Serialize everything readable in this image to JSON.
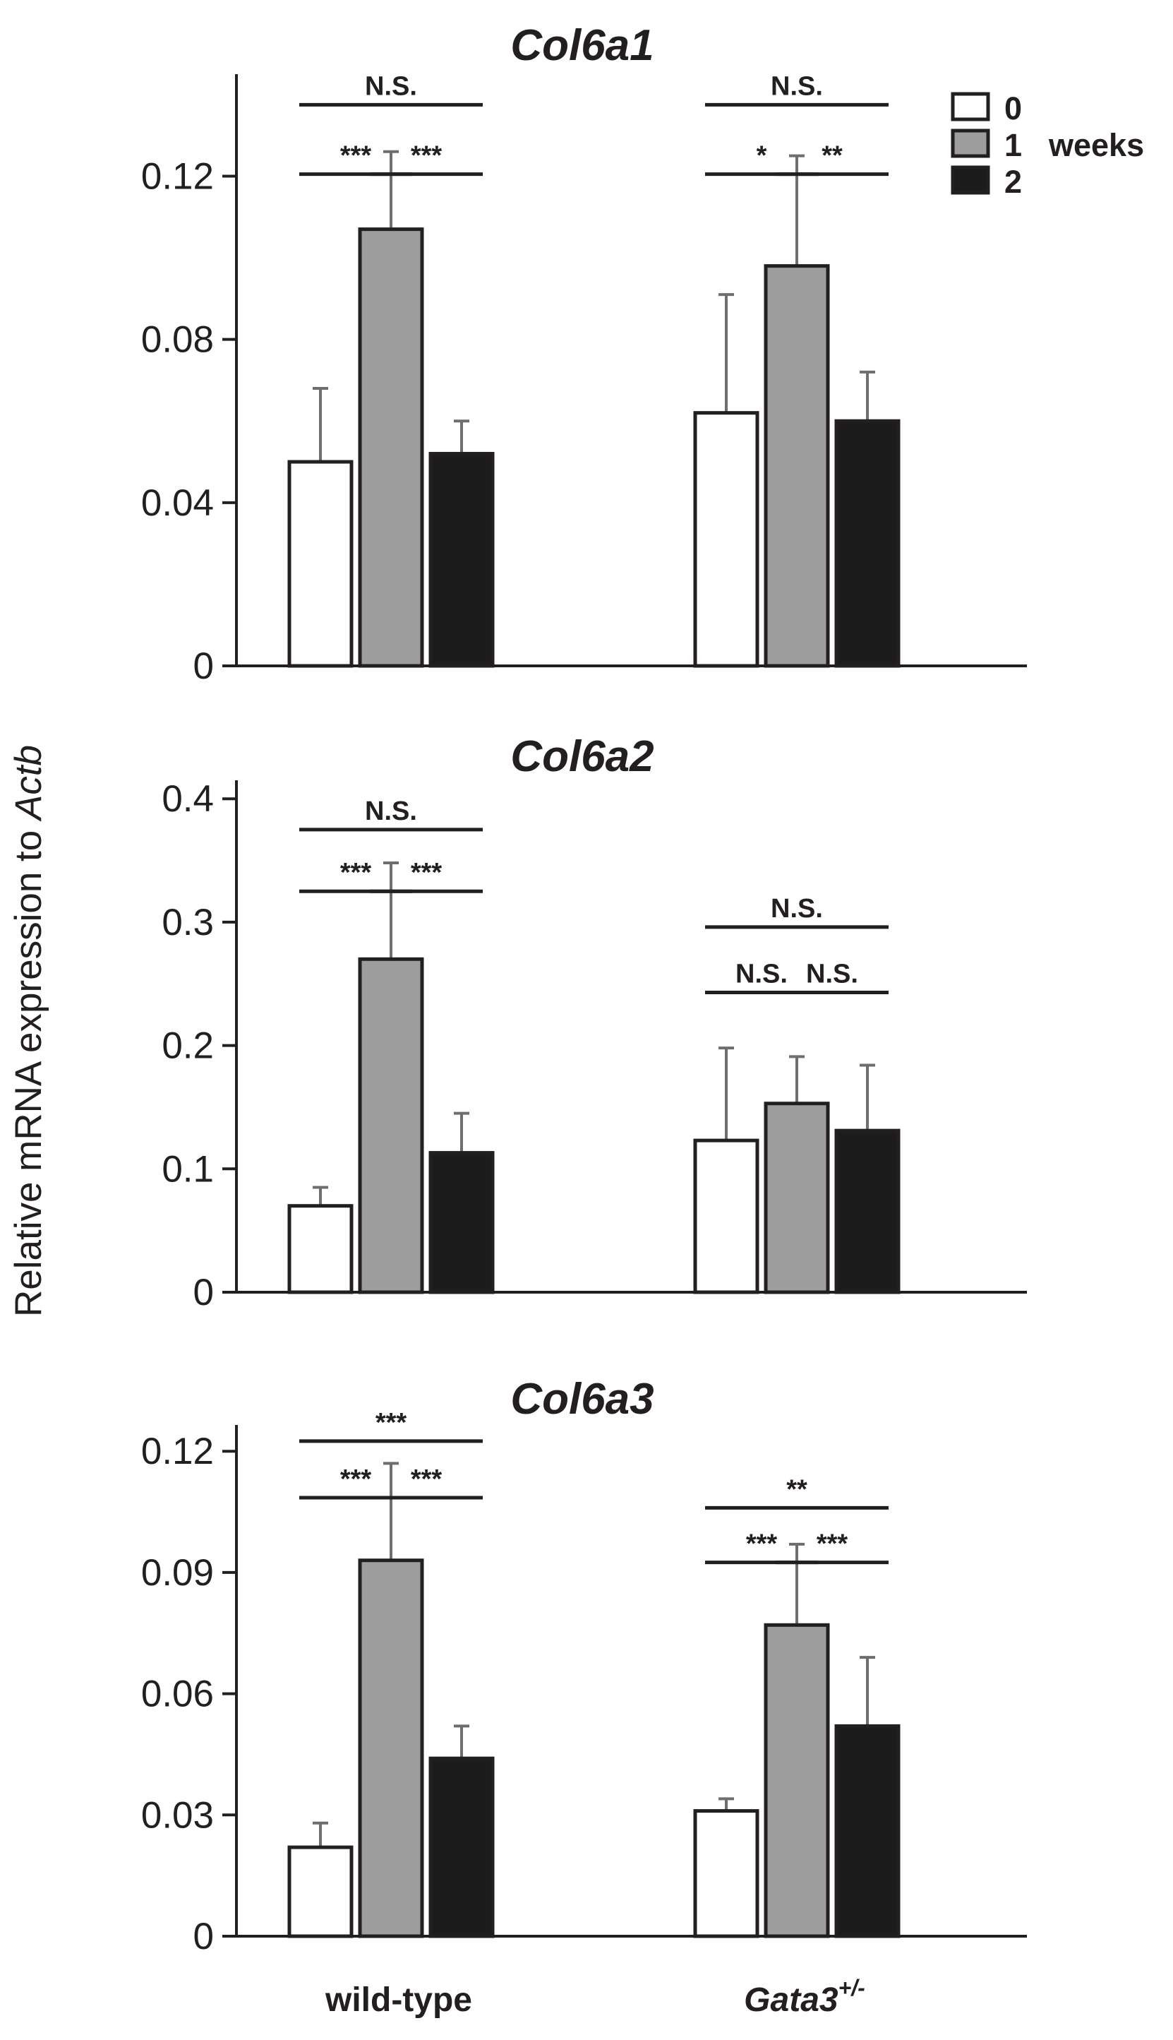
{
  "figure": {
    "ylabel_main": "Relative mRNA expression to ",
    "ylabel_italic": "Actb"
  },
  "legend": {
    "title_suffix": "weeks",
    "entries": [
      {
        "label": "0",
        "color": "#ffffff"
      },
      {
        "label": "1",
        "color": "#9d9d9d"
      },
      {
        "label": "2",
        "color": "#1c1c1c"
      }
    ]
  },
  "categories": [
    {
      "label": "wild-type",
      "italic": false,
      "sup": ""
    },
    {
      "label": "Gata3",
      "italic": true,
      "sup": "+/-"
    }
  ],
  "chart_data": [
    {
      "type": "bar",
      "title": "Col6a1",
      "categories": [
        "wild-type",
        "Gata3+/-"
      ],
      "ylim": [
        0,
        0.145
      ],
      "yticks": [
        0,
        0.04,
        0.08,
        0.12
      ],
      "yticklabels": [
        "0",
        "0.04",
        "0.08",
        "0.12"
      ],
      "series": [
        {
          "name": "0",
          "color": "#ffffff",
          "values": [
            0.05,
            0.062
          ],
          "errors": [
            0.018,
            0.029
          ]
        },
        {
          "name": "1",
          "color": "#9d9d9d",
          "values": [
            0.107,
            0.098
          ],
          "errors": [
            0.019,
            0.027
          ]
        },
        {
          "name": "2",
          "color": "#1c1c1c",
          "values": [
            0.052,
            0.06
          ],
          "errors": [
            0.008,
            0.012
          ]
        }
      ],
      "significance": [
        {
          "category": 0,
          "from": 0,
          "to": 2,
          "label": "N.S.",
          "y": 0.1375
        },
        {
          "category": 0,
          "from": 0,
          "to": 1,
          "label": "***",
          "y": 0.1205
        },
        {
          "category": 0,
          "from": 1,
          "to": 2,
          "label": "***",
          "y": 0.1205
        },
        {
          "category": 1,
          "from": 0,
          "to": 2,
          "label": "N.S.",
          "y": 0.1375
        },
        {
          "category": 1,
          "from": 0,
          "to": 1,
          "label": "*",
          "y": 0.1205
        },
        {
          "category": 1,
          "from": 1,
          "to": 2,
          "label": "**",
          "y": 0.1205
        }
      ]
    },
    {
      "type": "bar",
      "title": "Col6a2",
      "categories": [
        "wild-type",
        "Gata3+/-"
      ],
      "ylim": [
        0,
        0.415
      ],
      "yticks": [
        0,
        0.1,
        0.2,
        0.3,
        0.4
      ],
      "yticklabels": [
        "0",
        "0.1",
        "0.2",
        "0.3",
        "0.4"
      ],
      "series": [
        {
          "name": "0",
          "color": "#ffffff",
          "values": [
            0.07,
            0.123
          ],
          "errors": [
            0.015,
            0.075
          ]
        },
        {
          "name": "1",
          "color": "#9d9d9d",
          "values": [
            0.27,
            0.153
          ],
          "errors": [
            0.078,
            0.038
          ]
        },
        {
          "name": "2",
          "color": "#1c1c1c",
          "values": [
            0.113,
            0.131
          ],
          "errors": [
            0.032,
            0.053
          ]
        }
      ],
      "significance": [
        {
          "category": 0,
          "from": 0,
          "to": 2,
          "label": "N.S.",
          "y": 0.375
        },
        {
          "category": 0,
          "from": 0,
          "to": 1,
          "label": "***",
          "y": 0.325
        },
        {
          "category": 0,
          "from": 1,
          "to": 2,
          "label": "***",
          "y": 0.325
        },
        {
          "category": 1,
          "from": 0,
          "to": 2,
          "label": "N.S.",
          "y": 0.296
        },
        {
          "category": 1,
          "from": 0,
          "to": 1,
          "label": "N.S.",
          "y": 0.243
        },
        {
          "category": 1,
          "from": 1,
          "to": 2,
          "label": "N.S.",
          "y": 0.243
        }
      ]
    },
    {
      "type": "bar",
      "title": "Col6a3",
      "categories": [
        "wild-type",
        "Gata3+/-"
      ],
      "ylim": [
        0,
        0.1265
      ],
      "yticks": [
        0,
        0.03,
        0.06,
        0.09,
        0.12
      ],
      "yticklabels": [
        "0",
        "0.03",
        "0.06",
        "0.09",
        "0.12"
      ],
      "series": [
        {
          "name": "0",
          "color": "#ffffff",
          "values": [
            0.022,
            0.031
          ],
          "errors": [
            0.006,
            0.003
          ]
        },
        {
          "name": "1",
          "color": "#9d9d9d",
          "values": [
            0.093,
            0.077
          ],
          "errors": [
            0.024,
            0.02
          ]
        },
        {
          "name": "2",
          "color": "#1c1c1c",
          "values": [
            0.044,
            0.052
          ],
          "errors": [
            0.008,
            0.017
          ]
        }
      ],
      "significance": [
        {
          "category": 0,
          "from": 0,
          "to": 2,
          "label": "***",
          "y": 0.1225
        },
        {
          "category": 0,
          "from": 0,
          "to": 1,
          "label": "***",
          "y": 0.1085
        },
        {
          "category": 0,
          "from": 1,
          "to": 2,
          "label": "***",
          "y": 0.1085
        },
        {
          "category": 1,
          "from": 0,
          "to": 2,
          "label": "**",
          "y": 0.106
        },
        {
          "category": 1,
          "from": 0,
          "to": 1,
          "label": "***",
          "y": 0.0925
        },
        {
          "category": 1,
          "from": 1,
          "to": 2,
          "label": "***",
          "y": 0.0925
        }
      ]
    }
  ]
}
